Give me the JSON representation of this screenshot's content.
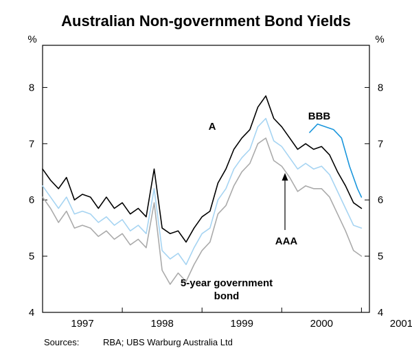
{
  "chart_data": {
    "type": "line",
    "title": "Australian Non-government Bond Yields",
    "y_unit": "%",
    "ylim": [
      4,
      8.75
    ],
    "yticks": [
      4,
      5,
      6,
      7,
      8
    ],
    "ytick_labels": [
      "4",
      "5",
      "6",
      "7",
      "8"
    ],
    "xlim": [
      1997.0,
      2001.1
    ],
    "xtick_labels": [
      {
        "label": "1997",
        "center": 1997.5
      },
      {
        "label": "1998",
        "center": 1998.5
      },
      {
        "label": "1999",
        "center": 1999.5
      },
      {
        "label": "2000",
        "center": 2000.5
      },
      {
        "label": "2001",
        "center": 2001.5
      }
    ],
    "year_boundaries": [
      1998,
      1999,
      2000,
      2001
    ],
    "grid": false,
    "legend": "none",
    "colors": {
      "A": "#000000",
      "AAA": "#a6d4f2",
      "BBB": "#1a96dc",
      "govt": "#aaaaaa",
      "axis": "#000000",
      "text": "#000000"
    },
    "series": [
      {
        "key": "A",
        "name": "A",
        "x": [
          1997.0,
          1997.1,
          1997.2,
          1997.3,
          1997.4,
          1997.5,
          1997.6,
          1997.7,
          1997.8,
          1997.9,
          1998.0,
          1998.1,
          1998.2,
          1998.3,
          1998.4,
          1998.5,
          1998.6,
          1998.7,
          1998.8,
          1998.9,
          1999.0,
          1999.1,
          1999.2,
          1999.3,
          1999.4,
          1999.5,
          1999.6,
          1999.7,
          1999.8,
          1999.9,
          2000.0,
          2000.1,
          2000.2,
          2000.3,
          2000.4,
          2000.5,
          2000.6,
          2000.7,
          2000.8,
          2000.9,
          2001.0
        ],
        "values": [
          6.55,
          6.35,
          6.2,
          6.4,
          6.0,
          6.1,
          6.05,
          5.85,
          6.05,
          5.85,
          5.95,
          5.75,
          5.85,
          5.7,
          6.55,
          5.5,
          5.4,
          5.45,
          5.25,
          5.5,
          5.7,
          5.8,
          6.3,
          6.55,
          6.9,
          7.1,
          7.25,
          7.65,
          7.85,
          7.45,
          7.3,
          7.1,
          6.9,
          7.0,
          6.9,
          6.95,
          6.8,
          6.5,
          6.25,
          5.95,
          5.85
        ]
      },
      {
        "key": "AAA",
        "name": "AAA",
        "x": [
          1997.0,
          1997.1,
          1997.2,
          1997.3,
          1997.4,
          1997.5,
          1997.6,
          1997.7,
          1997.8,
          1997.9,
          1998.0,
          1998.1,
          1998.2,
          1998.3,
          1998.4,
          1998.5,
          1998.6,
          1998.7,
          1998.8,
          1998.9,
          1999.0,
          1999.1,
          1999.2,
          1999.3,
          1999.4,
          1999.5,
          1999.6,
          1999.7,
          1999.8,
          1999.9,
          2000.0,
          2000.1,
          2000.2,
          2000.3,
          2000.4,
          2000.5,
          2000.6,
          2000.7,
          2000.8,
          2000.9,
          2001.0
        ],
        "values": [
          6.25,
          6.05,
          5.85,
          6.05,
          5.75,
          5.8,
          5.75,
          5.6,
          5.7,
          5.55,
          5.65,
          5.45,
          5.55,
          5.4,
          6.2,
          5.1,
          4.95,
          5.05,
          4.85,
          5.15,
          5.4,
          5.5,
          6.0,
          6.2,
          6.55,
          6.75,
          6.9,
          7.3,
          7.45,
          7.05,
          6.95,
          6.75,
          6.55,
          6.65,
          6.55,
          6.6,
          6.45,
          6.15,
          5.85,
          5.55,
          5.5
        ]
      },
      {
        "key": "BBB",
        "name": "BBB",
        "x": [
          2000.35,
          2000.45,
          2000.55,
          2000.65,
          2000.75,
          2000.85,
          2000.95,
          2001.0
        ],
        "values": [
          7.2,
          7.35,
          7.3,
          7.25,
          7.1,
          6.6,
          6.2,
          6.05
        ]
      },
      {
        "key": "govt",
        "name": "5-year government bond",
        "x": [
          1997.0,
          1997.1,
          1997.2,
          1997.3,
          1997.4,
          1997.5,
          1997.6,
          1997.7,
          1997.8,
          1997.9,
          1998.0,
          1998.1,
          1998.2,
          1998.3,
          1998.4,
          1998.5,
          1998.6,
          1998.7,
          1998.8,
          1998.9,
          1999.0,
          1999.1,
          1999.2,
          1999.3,
          1999.4,
          1999.5,
          1999.6,
          1999.7,
          1999.8,
          1999.9,
          2000.0,
          2000.1,
          2000.2,
          2000.3,
          2000.4,
          2000.5,
          2000.6,
          2000.7,
          2000.8,
          2000.9,
          2001.0
        ],
        "values": [
          6.05,
          5.85,
          5.6,
          5.8,
          5.5,
          5.55,
          5.5,
          5.35,
          5.45,
          5.3,
          5.4,
          5.2,
          5.3,
          5.15,
          5.95,
          4.75,
          4.5,
          4.7,
          4.55,
          4.85,
          5.1,
          5.25,
          5.75,
          5.9,
          6.25,
          6.5,
          6.65,
          7.0,
          7.1,
          6.7,
          6.6,
          6.4,
          6.15,
          6.25,
          6.2,
          6.2,
          6.05,
          5.75,
          5.45,
          5.1,
          5.0
        ]
      }
    ],
    "annotations": {
      "A": "A",
      "BBB": "BBB",
      "AAA": "AAA",
      "govt_line1": "5-year government",
      "govt_line2": "bond"
    },
    "source": {
      "label": "Sources:",
      "text": "RBA; UBS Warburg Australia Ltd"
    }
  }
}
